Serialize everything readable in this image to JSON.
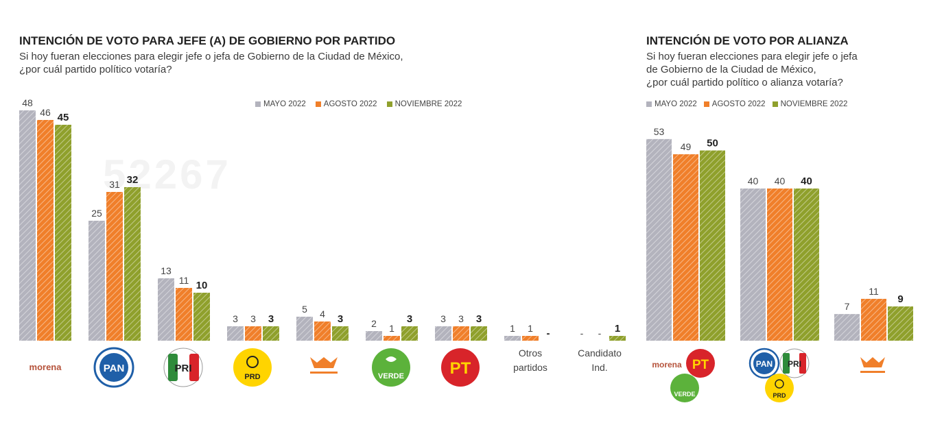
{
  "colors": {
    "mayo": "#b3b3bd",
    "agosto": "#f07f2a",
    "noviembre": "#8fa02c",
    "morena": "#b5523a",
    "pan": "#1f5fa8",
    "pri_green": "#2e8b3a",
    "pri_red": "#d8242a",
    "prd": "#ffd400",
    "mc": "#f07f2a",
    "verde": "#5cb23b",
    "pt": "#d8242a"
  },
  "left": {
    "title": "INTENCIÓN DE VOTO PARA JEFE (A) DE GOBIERNO POR PARTIDO",
    "subtitle_1": "Si hoy fueran elecciones para elegir jefe o jefa de Gobierno de la Ciudad de México,",
    "subtitle_2": "¿por cuál partido político votaría?",
    "legend": [
      "MAYO 2022",
      "AGOSTO 2022",
      "NOVIEMBRE 2022"
    ]
  },
  "right": {
    "title": "INTENCIÓN DE VOTO POR ALIANZA",
    "subtitle_1": "Si hoy fueran elecciones para elegir jefe o jefa",
    "subtitle_2": "de Gobierno de la Ciudad de México,",
    "subtitle_3": "¿por cuál partido político o alianza votaría?",
    "legend": [
      "MAYO 2022",
      "AGOSTO 2022",
      "NOVIEMBRE 2022"
    ]
  },
  "logos": {
    "morena": "morena",
    "pan": "PAN",
    "pri": "PRI",
    "prd": "PRD",
    "verde": "VERDE",
    "pt": "PT"
  },
  "chart_data": [
    {
      "type": "bar",
      "title": "INTENCIÓN DE VOTO PARA JEFE (A) DE GOBIERNO POR PARTIDO",
      "categories": [
        "morena",
        "PAN",
        "PRI",
        "PRD",
        "MC",
        "VERDE",
        "PT",
        "Otros partidos",
        "Candidato Ind."
      ],
      "category_labels": [
        "",
        "",
        "",
        "",
        "",
        "",
        "",
        "Otros\npartidos",
        "Candidato\nInd."
      ],
      "series": [
        {
          "name": "MAYO 2022",
          "values": [
            48,
            25,
            13,
            3,
            5,
            2,
            3,
            1,
            null
          ]
        },
        {
          "name": "AGOSTO 2022",
          "values": [
            46,
            31,
            11,
            3,
            4,
            1,
            3,
            1,
            null
          ]
        },
        {
          "name": "NOVIEMBRE 2022",
          "values": [
            45,
            32,
            10,
            3,
            3,
            3,
            3,
            null,
            1
          ]
        }
      ],
      "display_labels": [
        [
          "48",
          "25",
          "13",
          "3",
          "5",
          "2",
          "3",
          "1",
          "-"
        ],
        [
          "46",
          "31",
          "11",
          "3",
          "4",
          "1",
          "3",
          "1",
          "-"
        ],
        [
          "45",
          "32",
          "10",
          "3",
          "3",
          "3",
          "3",
          "-",
          "1"
        ]
      ],
      "ylim": [
        0,
        50
      ],
      "legend_position": "top-right"
    },
    {
      "type": "bar",
      "title": "INTENCIÓN DE VOTO POR ALIANZA",
      "categories": [
        "morena-PT-VERDE",
        "PAN-PRI-PRD",
        "MC"
      ],
      "series": [
        {
          "name": "MAYO 2022",
          "values": [
            53,
            40,
            7
          ]
        },
        {
          "name": "AGOSTO 2022",
          "values": [
            49,
            40,
            11
          ]
        },
        {
          "name": "NOVIEMBRE 2022",
          "values": [
            50,
            40,
            9
          ]
        }
      ],
      "display_labels": [
        [
          "53",
          "40",
          "7"
        ],
        [
          "49",
          "40",
          "11"
        ],
        [
          "50",
          "40",
          "9"
        ]
      ],
      "ylim": [
        0,
        55
      ],
      "legend_position": "top"
    }
  ]
}
